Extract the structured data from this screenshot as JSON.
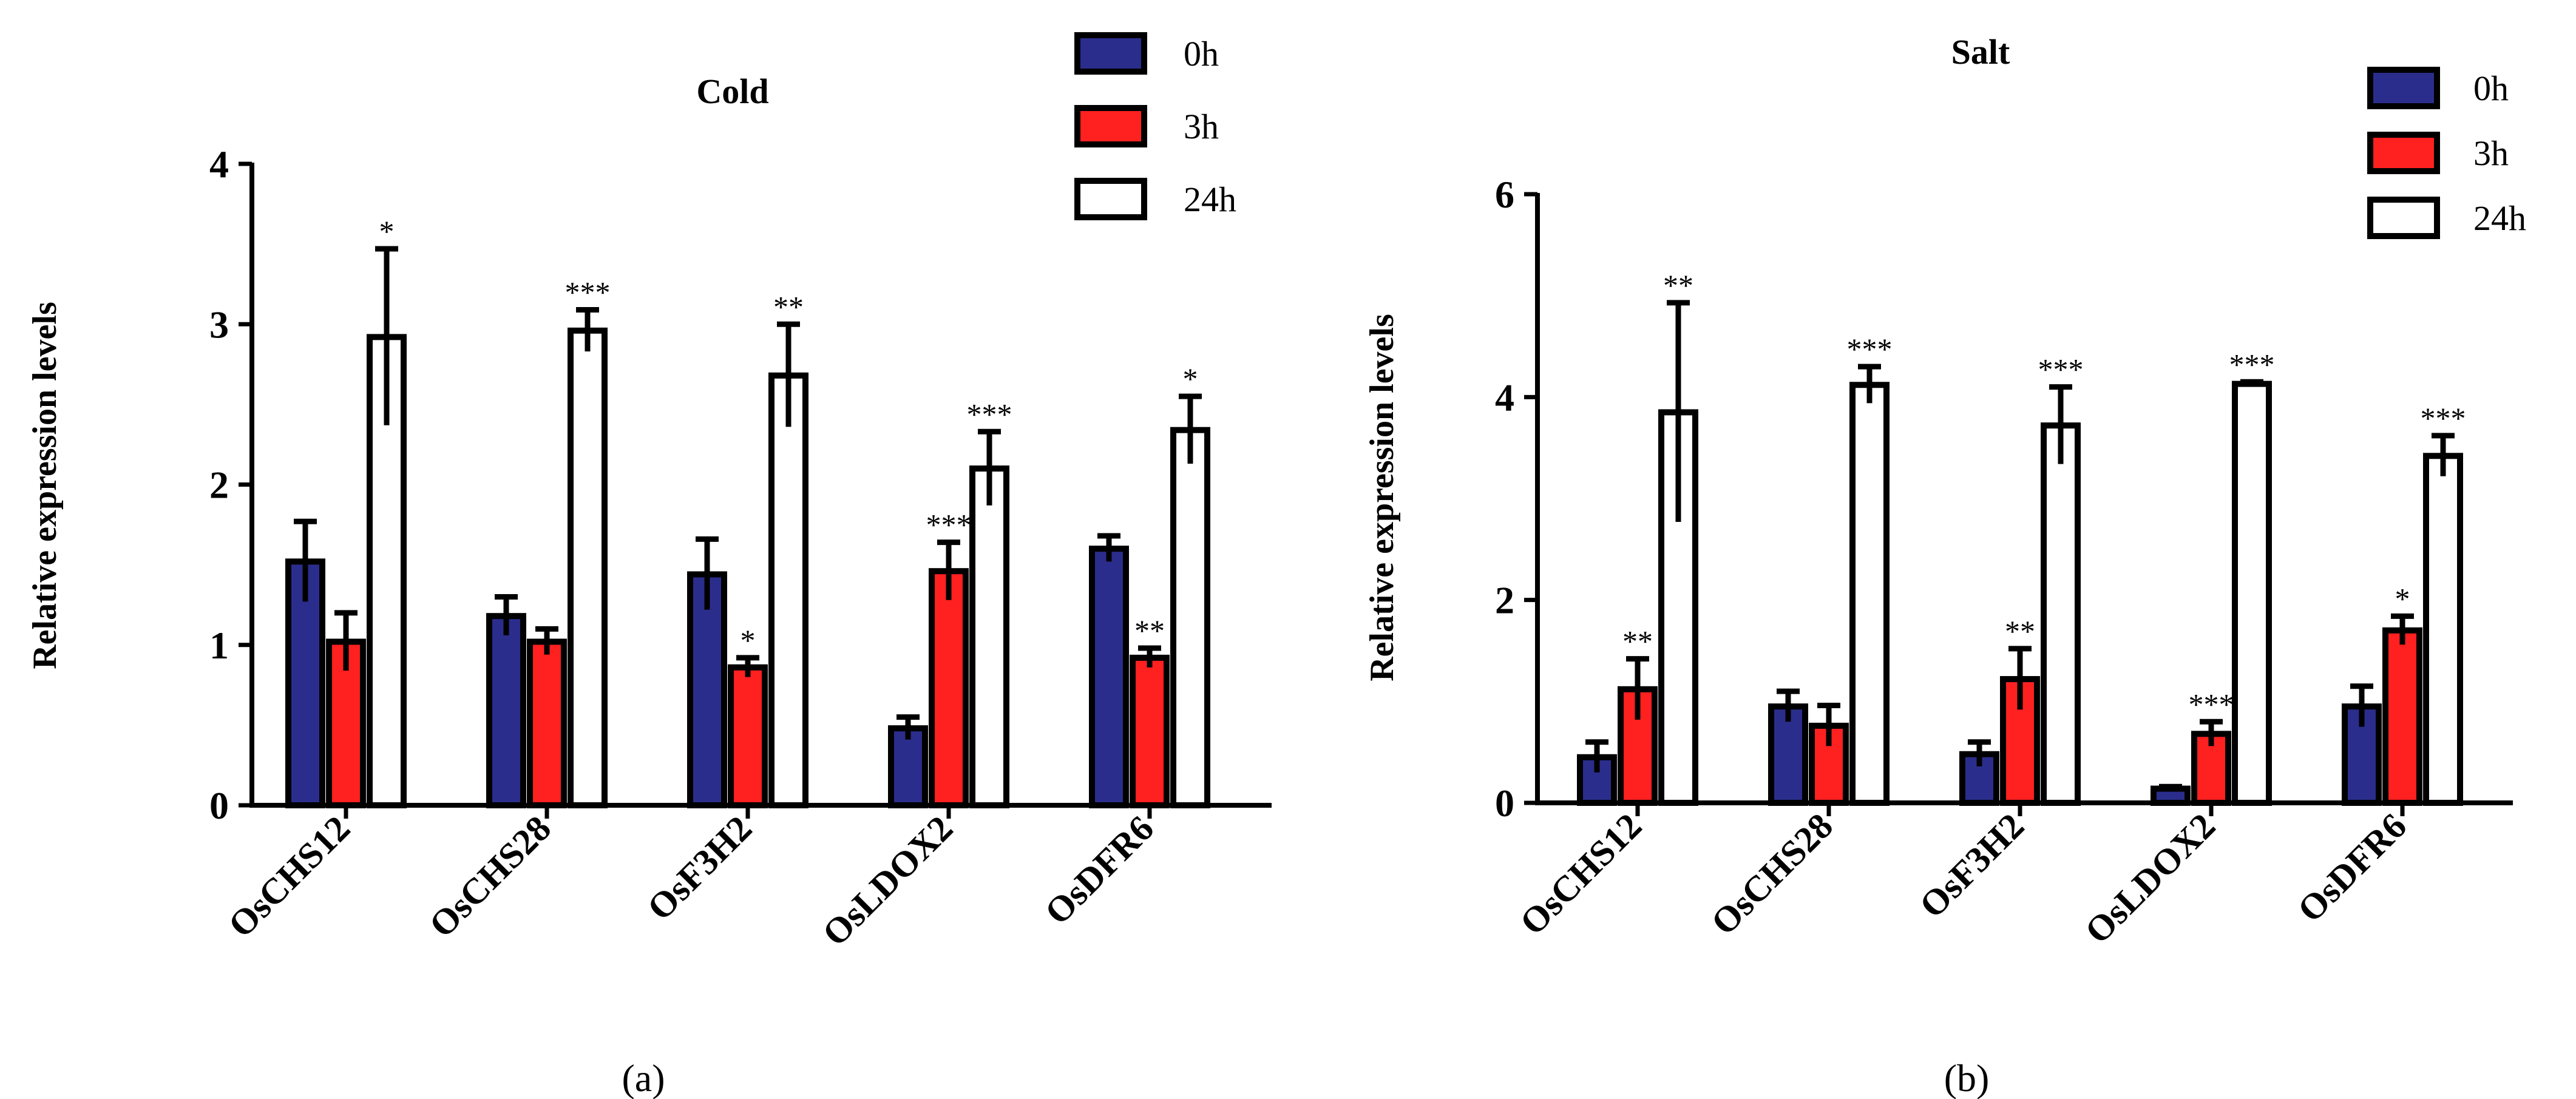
{
  "figure_labels": {
    "a": "(a)",
    "b": "(b)"
  },
  "chart_data": [
    {
      "type": "bar",
      "title": "Cold",
      "xlabel": "",
      "ylabel": "Relative expression levels",
      "ylim": [
        0,
        4
      ],
      "yticks": [
        0,
        1,
        2,
        3,
        4
      ],
      "categories": [
        "OsCHS12",
        "OsCHS28",
        "OsF3H2",
        "OsLDOX2",
        "OsDFR6"
      ],
      "legend_position": "top-right",
      "series": [
        {
          "name": "0h",
          "color": "#2b2d8c",
          "values": [
            1.52,
            1.18,
            1.44,
            0.48,
            1.6
          ],
          "errors": [
            0.25,
            0.12,
            0.22,
            0.07,
            0.08
          ],
          "significance": [
            "",
            "",
            "",
            "",
            ""
          ]
        },
        {
          "name": "3h",
          "color": "#ff2020",
          "values": [
            1.02,
            1.02,
            0.86,
            1.46,
            0.92
          ],
          "errors": [
            0.18,
            0.08,
            0.06,
            0.18,
            0.06
          ],
          "significance": [
            "",
            "",
            "*",
            "***",
            "**"
          ]
        },
        {
          "name": "24h",
          "color": "#ffffff",
          "values": [
            2.92,
            2.96,
            2.68,
            2.1,
            2.34
          ],
          "errors": [
            0.55,
            0.13,
            0.32,
            0.23,
            0.21
          ],
          "significance": [
            "*",
            "***",
            "**",
            "***",
            "*"
          ]
        }
      ]
    },
    {
      "type": "bar",
      "title": "Salt",
      "xlabel": "",
      "ylabel": "Relative expression levels",
      "ylim": [
        0,
        6
      ],
      "yticks": [
        0,
        2,
        4,
        6
      ],
      "categories": [
        "OsCHS12",
        "OsCHS28",
        "OsF3H2",
        "OsLDOX2",
        "OsDFR6"
      ],
      "legend_position": "top-right",
      "series": [
        {
          "name": "0h",
          "color": "#2b2d8c",
          "values": [
            0.45,
            0.95,
            0.48,
            0.14,
            0.95
          ],
          "errors": [
            0.15,
            0.15,
            0.12,
            0.02,
            0.2
          ],
          "significance": [
            "",
            "",
            "",
            "",
            ""
          ]
        },
        {
          "name": "3h",
          "color": "#ff2020",
          "values": [
            1.12,
            0.76,
            1.22,
            0.68,
            1.7
          ],
          "errors": [
            0.3,
            0.2,
            0.3,
            0.12,
            0.14
          ],
          "significance": [
            "**",
            "",
            "**",
            "***",
            "*"
          ]
        },
        {
          "name": "24h",
          "color": "#ffffff",
          "values": [
            3.85,
            4.12,
            3.72,
            4.13,
            3.42
          ],
          "errors": [
            1.08,
            0.18,
            0.38,
            0.02,
            0.2
          ],
          "significance": [
            "**",
            "***",
            "***",
            "***",
            "***"
          ]
        }
      ]
    }
  ]
}
